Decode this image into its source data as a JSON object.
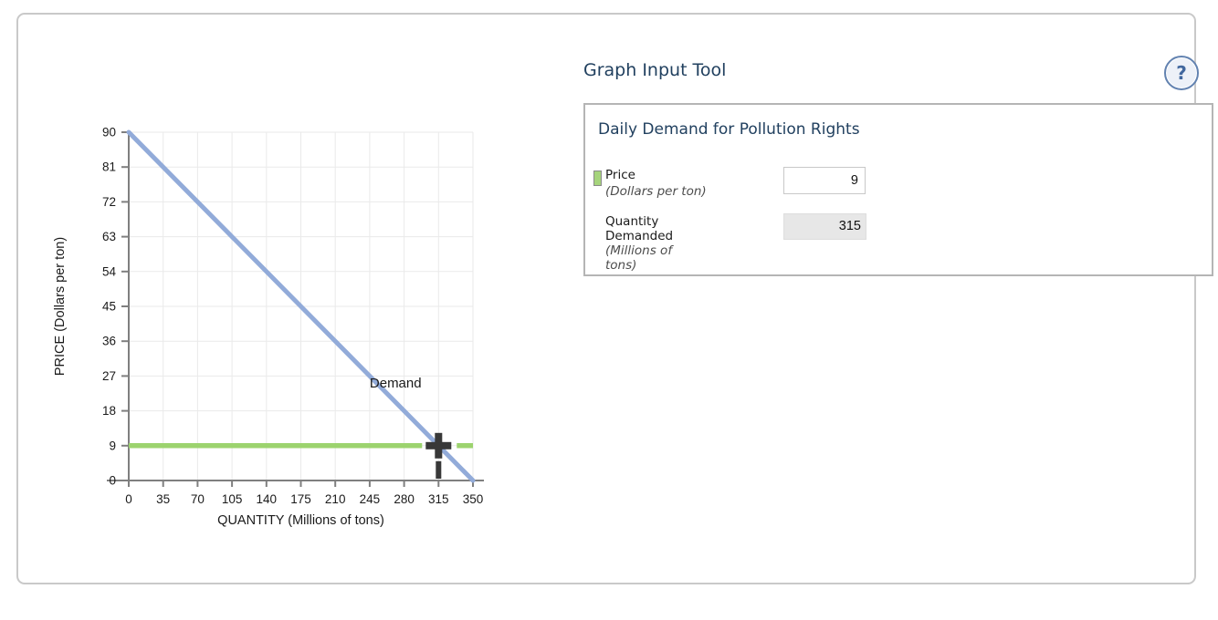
{
  "header": {
    "title": "Graph Input Tool",
    "help_label": "?"
  },
  "panel": {
    "title": "Daily Demand for Pollution Rights",
    "price": {
      "label": "Price",
      "sublabel": "(Dollars per ton)",
      "value": "9"
    },
    "quantity": {
      "label": "Quantity Demanded",
      "sublabel": "(Millions of tons)",
      "value": "315"
    }
  },
  "colors": {
    "demand_line": "#92abd9",
    "price_line": "#9cd36e",
    "marker": "#383838",
    "accent_navy": "#21405f",
    "swatch_green": "#a6d47c"
  },
  "chart_data": {
    "type": "line",
    "title": "",
    "xlabel": "QUANTITY (Millions of tons)",
    "ylabel": "PRICE (Dollars per ton)",
    "xlim": [
      0,
      350
    ],
    "ylim": [
      0,
      90
    ],
    "x_ticks": [
      0,
      35,
      70,
      105,
      140,
      175,
      210,
      245,
      280,
      315,
      350
    ],
    "y_ticks": [
      0,
      9,
      18,
      27,
      36,
      45,
      54,
      63,
      72,
      81,
      90
    ],
    "grid": true,
    "legend_position": "none",
    "series": [
      {
        "name": "Demand",
        "type": "line",
        "color": "#92abd9",
        "points": [
          [
            0,
            90
          ],
          [
            350,
            0
          ]
        ],
        "label": {
          "text": "Demand",
          "x": 245,
          "y": 24
        }
      },
      {
        "name": "Price",
        "type": "hline",
        "color": "#9cd36e",
        "y": 9
      }
    ],
    "marker": {
      "x": 315,
      "y": 9,
      "color": "#383838",
      "guide": "vertical-dashed"
    }
  }
}
